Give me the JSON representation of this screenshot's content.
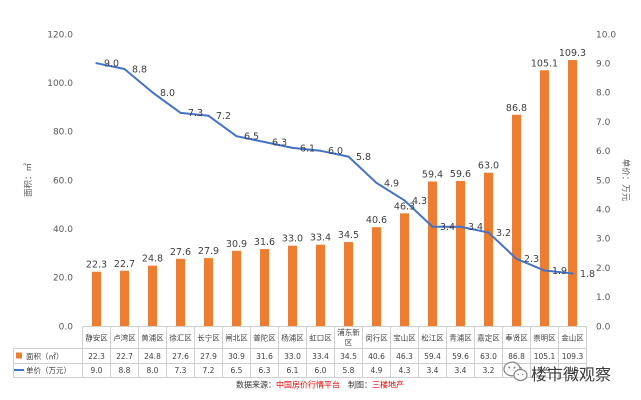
{
  "chart_data": {
    "type": "bar",
    "categories": [
      "静安区",
      "卢湾区",
      "黄浦区",
      "徐汇区",
      "长宁区",
      "闸北区",
      "普陀区",
      "杨浦区",
      "虹口区",
      "浦东新区",
      "闵行区",
      "宝山区",
      "松江区",
      "青浦区",
      "嘉定区",
      "奉贤区",
      "崇明区",
      "金山区"
    ],
    "series": [
      {
        "name": "面积（㎡）",
        "type": "bar",
        "axis": "left",
        "color": "#ED7D31",
        "values": [
          22.3,
          22.7,
          24.8,
          27.6,
          27.9,
          30.9,
          31.6,
          33.0,
          33.4,
          34.5,
          40.6,
          46.3,
          59.4,
          59.6,
          63.0,
          86.8,
          105.1,
          109.3
        ]
      },
      {
        "name": "单价（万元）",
        "type": "line",
        "axis": "right",
        "color": "#4472C4",
        "values": [
          9.0,
          8.8,
          8.0,
          7.3,
          7.2,
          6.5,
          6.3,
          6.1,
          6.0,
          5.8,
          4.9,
          4.3,
          3.4,
          3.4,
          3.2,
          2.3,
          1.9,
          1.8
        ]
      }
    ],
    "ylabel": "面积：㎡",
    "y2label": "单价：万元",
    "ylim": [
      0,
      120
    ],
    "yticks": [
      0,
      20,
      40,
      60,
      80,
      100,
      120
    ],
    "y2lim": [
      0,
      10
    ],
    "y2ticks": [
      0,
      1,
      2,
      3,
      4,
      5,
      6,
      7,
      8,
      9,
      10
    ],
    "grid": false,
    "legend": "bottom"
  },
  "footer": {
    "source_label": "数据来源：",
    "source": "中国房价行情平台",
    "chart_by_label": "制图：",
    "chart_by": "三楼地产"
  },
  "watermark": {
    "icon": "wechat-icon",
    "text": "楼市微观察"
  }
}
